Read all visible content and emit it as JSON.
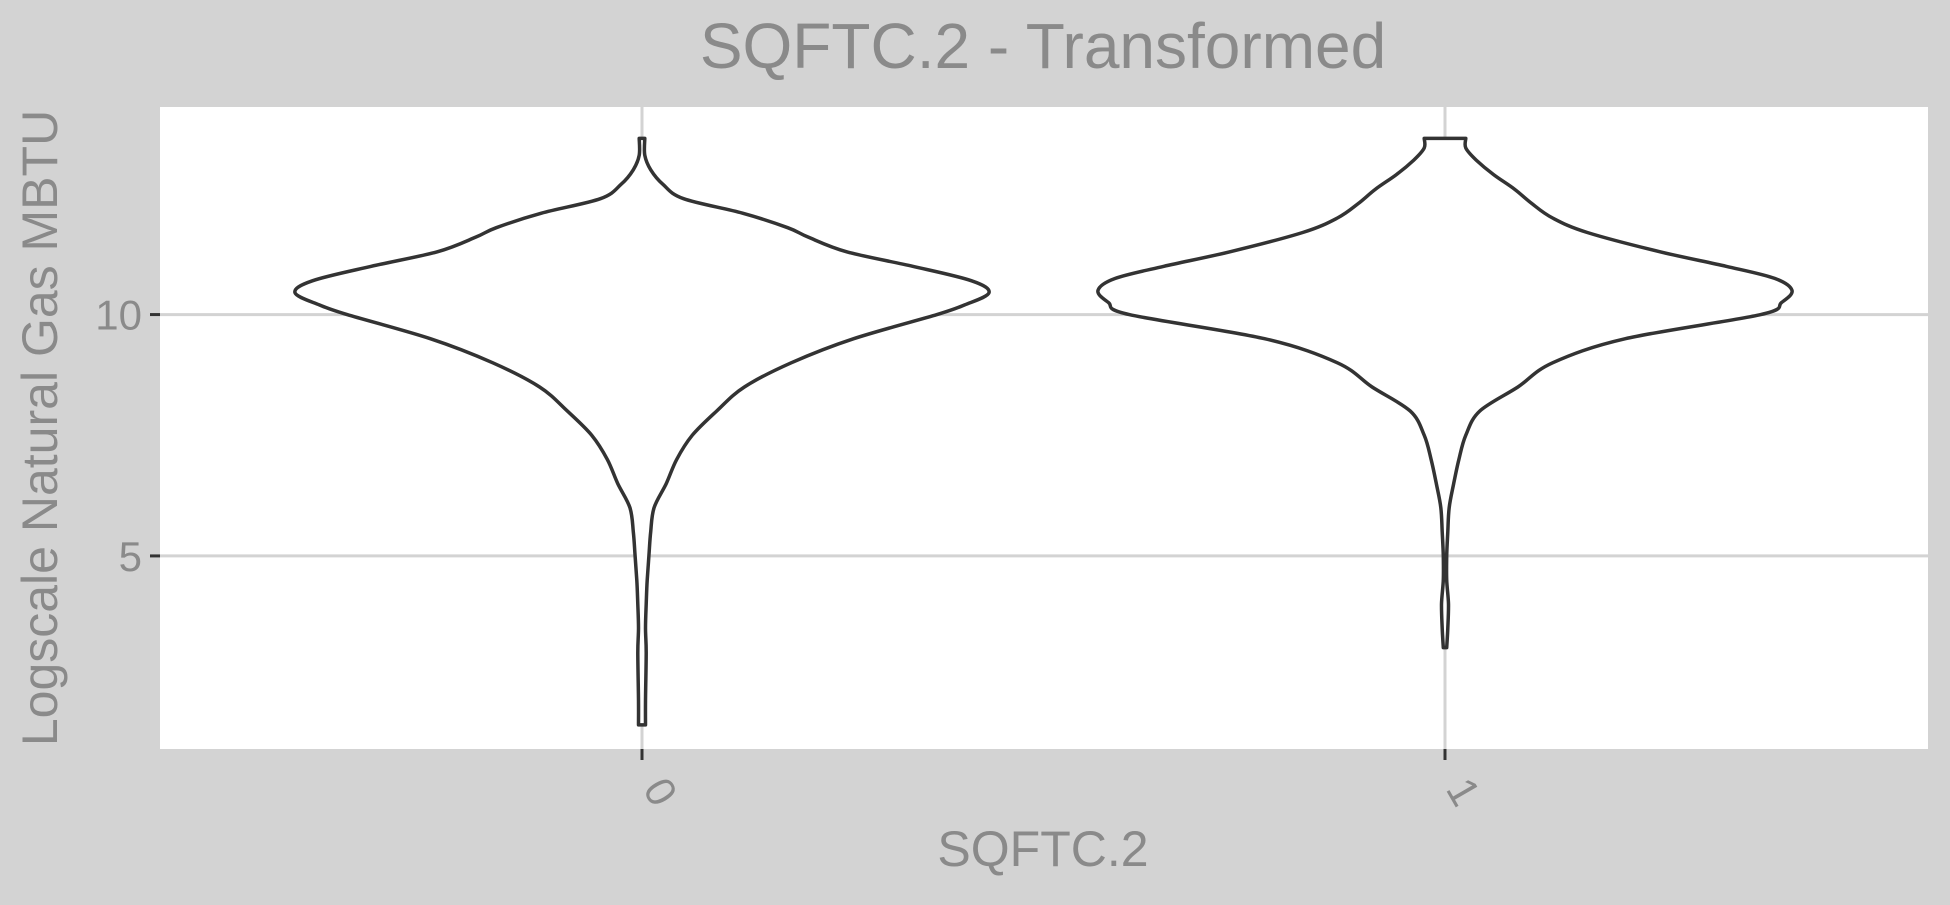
{
  "chart_data": {
    "type": "violin",
    "title": "SQFTC.2 - Transformed",
    "xlabel": "SQFTC.2",
    "ylabel": "Logscale Natural Gas MBTU",
    "categories": [
      "0",
      "1"
    ],
    "ylim": [
      1.0,
      14.3
    ],
    "yticks": [
      5,
      10
    ],
    "grid": true,
    "legend": "none",
    "colors": {
      "outer_background": "#d3d3d3",
      "panel_background": "#ffffff",
      "grid": "#d3d3d3",
      "violin_outline": "#333333",
      "violin_fill": "#ffffff",
      "text": "#8a8a8a",
      "tick": "#333333"
    },
    "violins": [
      {
        "category": "0",
        "density": [
          [
            1.5,
            0.01
          ],
          [
            2.0,
            0.01
          ],
          [
            3.0,
            0.012
          ],
          [
            3.5,
            0.01
          ],
          [
            4.0,
            0.012
          ],
          [
            4.5,
            0.015
          ],
          [
            5.0,
            0.02
          ],
          [
            5.5,
            0.025
          ],
          [
            6.0,
            0.035
          ],
          [
            6.5,
            0.07
          ],
          [
            7.0,
            0.1
          ],
          [
            7.5,
            0.145
          ],
          [
            8.0,
            0.215
          ],
          [
            8.5,
            0.295
          ],
          [
            9.0,
            0.43
          ],
          [
            9.5,
            0.61
          ],
          [
            10.0,
            0.85
          ],
          [
            10.2,
            0.93
          ],
          [
            10.45,
            1.0
          ],
          [
            10.7,
            0.95
          ],
          [
            11.0,
            0.78
          ],
          [
            11.3,
            0.59
          ],
          [
            11.6,
            0.48
          ],
          [
            11.8,
            0.42
          ],
          [
            12.1,
            0.29
          ],
          [
            12.4,
            0.12
          ],
          [
            12.7,
            0.06
          ],
          [
            13.0,
            0.025
          ],
          [
            13.3,
            0.008
          ],
          [
            13.65,
            0.008
          ]
        ]
      },
      {
        "category": "1",
        "density": [
          [
            3.1,
            0.005
          ],
          [
            3.5,
            0.008
          ],
          [
            4.0,
            0.01
          ],
          [
            4.5,
            0.005
          ],
          [
            5.0,
            0.005
          ],
          [
            5.5,
            0.008
          ],
          [
            6.0,
            0.012
          ],
          [
            6.5,
            0.025
          ],
          [
            7.0,
            0.04
          ],
          [
            7.5,
            0.06
          ],
          [
            8.0,
            0.1
          ],
          [
            8.5,
            0.21
          ],
          [
            9.0,
            0.31
          ],
          [
            9.5,
            0.52
          ],
          [
            10.0,
            0.91
          ],
          [
            10.25,
            0.97
          ],
          [
            10.5,
            1.0
          ],
          [
            10.75,
            0.95
          ],
          [
            11.0,
            0.81
          ],
          [
            11.3,
            0.62
          ],
          [
            11.7,
            0.41
          ],
          [
            12.0,
            0.31
          ],
          [
            12.3,
            0.25
          ],
          [
            12.6,
            0.2
          ],
          [
            12.9,
            0.14
          ],
          [
            13.2,
            0.09
          ],
          [
            13.45,
            0.06
          ],
          [
            13.65,
            0.06
          ]
        ]
      }
    ]
  }
}
